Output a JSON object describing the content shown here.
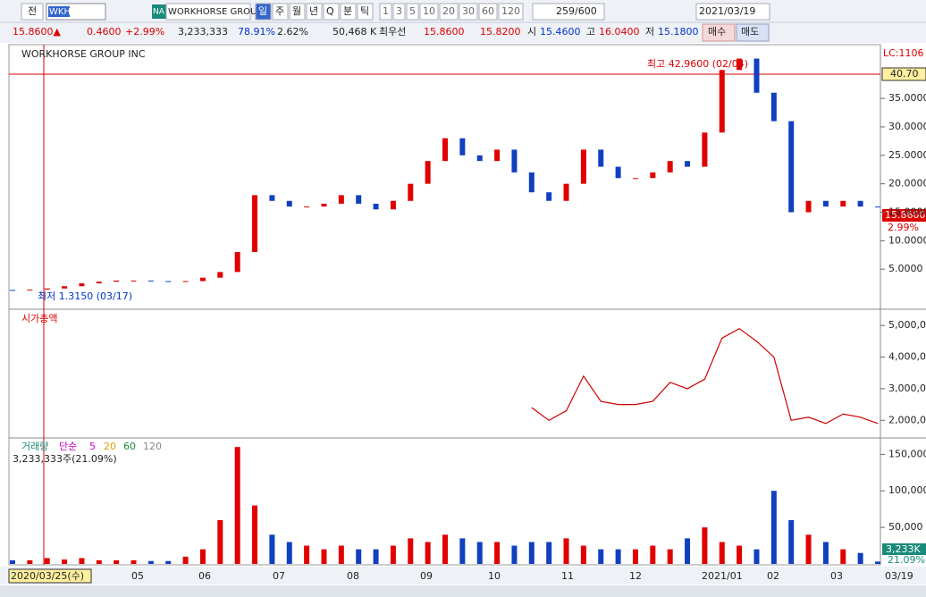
{
  "toolbar": {
    "tab": "전",
    "symbol": "WKHS",
    "exchange": "NA",
    "name": "WORKHORSE GROUP",
    "periods": [
      "일",
      "주",
      "월",
      "년",
      "Q",
      "분",
      "틱"
    ],
    "intervals": [
      "1",
      "3",
      "5",
      "10",
      "20",
      "30",
      "60",
      "120"
    ],
    "count": "259/600",
    "date": "2021/03/19"
  },
  "quote": {
    "last": "15.8600▲",
    "change": "0.4600",
    "change_pct": "+2.99%",
    "volume": "3,233,333",
    "vol_ratio": "78.91%",
    "turnover": "2.62%",
    "amount": "50,468 K",
    "best_label": "최우선",
    "ask": "15.8600",
    "bid": "15.8200",
    "open_label": "시",
    "open": "15.4600",
    "high_label": "고",
    "high": "16.0400",
    "low_label": "저",
    "low": "15.1800",
    "buy": "매수",
    "sell": "매도"
  },
  "price_panel": {
    "title": "WORKHORSE GROUP INC",
    "max_note": "최고 42.9600 (02/04)",
    "min_note": "최저 1.3150 (03/17)",
    "lc": "LC:1106",
    "ref_label": "40.70",
    "last_label": "15.8600",
    "pct_label": "2.99%",
    "ylim": [
      0,
      43.5
    ],
    "yticks": [
      {
        "value": 5,
        "label": "5.0000"
      },
      {
        "value": 10,
        "label": "10.0000"
      },
      {
        "value": 15,
        "label": "15.0000"
      },
      {
        "value": 20,
        "label": "20.0000"
      },
      {
        "value": 25,
        "label": "25.0000"
      },
      {
        "value": 30,
        "label": "30.0000"
      },
      {
        "value": 35,
        "label": "35.0000"
      }
    ],
    "open": [
      1.35,
      1.3,
      1.4,
      1.6,
      2.0,
      2.5,
      2.8,
      3.0,
      3.0,
      2.9,
      2.8,
      2.9,
      3.5,
      4.5,
      8,
      18,
      17,
      16,
      16,
      16.5,
      18,
      16.5,
      15.5,
      17,
      20,
      24,
      28,
      25,
      24,
      26,
      22,
      18.5,
      17,
      20,
      26,
      23,
      21,
      21,
      22,
      24,
      23,
      29,
      40,
      42,
      36,
      31,
      15,
      17,
      16,
      17,
      16
    ],
    "close": [
      1.3,
      1.4,
      1.6,
      2.0,
      2.5,
      2.8,
      3.0,
      3.0,
      2.9,
      2.8,
      2.9,
      3.5,
      4.5,
      8,
      18,
      17,
      16,
      16,
      16.5,
      18,
      16.5,
      15.5,
      17,
      20,
      24,
      28,
      25,
      24,
      26,
      22,
      18.5,
      17,
      20,
      26,
      23,
      21,
      21,
      22,
      24,
      23,
      29,
      40,
      42,
      36,
      31,
      15,
      17,
      16,
      17,
      16,
      15.86
    ]
  },
  "cap_panel": {
    "title": "시가총액",
    "ylim": [
      1500000,
      5400000
    ],
    "yticks": [
      {
        "value": 2000000,
        "label": "2,000,000"
      },
      {
        "value": 3000000,
        "label": "3,000,000"
      },
      {
        "value": 4000000,
        "label": "4,000,000"
      },
      {
        "value": 5000000,
        "label": "5,000,000"
      }
    ],
    "values": [
      null,
      null,
      null,
      null,
      null,
      null,
      null,
      null,
      null,
      null,
      null,
      null,
      null,
      null,
      null,
      null,
      null,
      null,
      null,
      null,
      null,
      null,
      null,
      null,
      null,
      null,
      null,
      null,
      null,
      null,
      2400000,
      2000000,
      2300000,
      3400000,
      2600000,
      2500000,
      2500000,
      2600000,
      3200000,
      3000000,
      3300000,
      4600000,
      4900000,
      4500000,
      4000000,
      2000000,
      2100000,
      1900000,
      2200000,
      2100000,
      1900000
    ]
  },
  "vol_panel": {
    "title": "거래량",
    "ma": [
      "단순",
      "5",
      "20",
      "60",
      "120"
    ],
    "note": "3,233,333주(21.09%)",
    "last_label": "3,233K",
    "pct_label": "21.09%",
    "ylim": [
      0,
      170000
    ],
    "yticks": [
      {
        "value": 50000,
        "label": "50,000"
      },
      {
        "value": 100000,
        "label": "100,000"
      },
      {
        "value": 150000,
        "label": "150,000"
      }
    ],
    "values": [
      5000,
      5000,
      8000,
      6000,
      8000,
      5000,
      5000,
      5000,
      4000,
      4000,
      10000,
      20000,
      60000,
      160000,
      80000,
      40000,
      30000,
      25000,
      20000,
      25000,
      20000,
      20000,
      25000,
      35000,
      30000,
      40000,
      35000,
      30000,
      30000,
      25000,
      30000,
      30000,
      35000,
      25000,
      20000,
      20000,
      20000,
      25000,
      20000,
      35000,
      50000,
      30000,
      25000,
      20000,
      100000,
      60000,
      40000,
      30000,
      20000,
      15000,
      3233
    ]
  },
  "dates": [
    "2020/03/25(수)",
    "05",
    "06",
    "07",
    "08",
    "09",
    "10",
    "11",
    "12",
    "2021/01",
    "02",
    "03",
    "03/19"
  ]
}
